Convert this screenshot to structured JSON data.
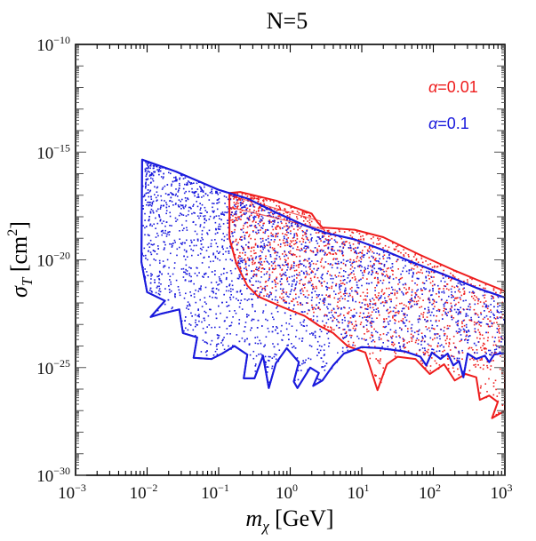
{
  "chart_data": {
    "type": "scatter",
    "title": "N=5",
    "xlabel": "m_χ [GeV]",
    "xlabel_parts": {
      "main": "m",
      "sub": "χ",
      "unit": " [GeV]"
    },
    "ylabel": "σ_T [cm²]",
    "ylabel_parts": {
      "main": "σ",
      "sub": "T",
      "unit": " [cm",
      "sup": "2",
      "close": "]"
    },
    "xscale": "log",
    "yscale": "log",
    "xlim": [
      0.001,
      1000
    ],
    "ylim": [
      1e-30,
      1e-10
    ],
    "grid": false,
    "x_ticks": [
      {
        "exp": -3,
        "label": "10",
        "sup": "−3"
      },
      {
        "exp": -2,
        "label": "10",
        "sup": "−2"
      },
      {
        "exp": -1,
        "label": "10",
        "sup": "−1"
      },
      {
        "exp": 0,
        "label": "10",
        "sup": "0"
      },
      {
        "exp": 1,
        "label": "10",
        "sup": "1"
      },
      {
        "exp": 2,
        "label": "10",
        "sup": "2"
      },
      {
        "exp": 3,
        "label": "10",
        "sup": "3"
      }
    ],
    "y_ticks": [
      {
        "exp": -10,
        "label": "10",
        "sup": "−10"
      },
      {
        "exp": -15,
        "label": "10",
        "sup": "−15"
      },
      {
        "exp": -20,
        "label": "10",
        "sup": "−20"
      },
      {
        "exp": -25,
        "label": "10",
        "sup": "−25"
      },
      {
        "exp": -30,
        "label": "10",
        "sup": "−30"
      }
    ],
    "legend_position": "top-right",
    "series": [
      {
        "name": "α=0.1",
        "label_symbol": "α",
        "label_value": "=0.1",
        "color": "#1a1adc",
        "draw_order": 2,
        "density": 2600,
        "outline_log10": [
          [
            -2.07,
            -15.35
          ],
          [
            -1.6,
            -15.9
          ],
          [
            -1.0,
            -16.75
          ],
          [
            -0.6,
            -17.15
          ],
          [
            -0.2,
            -17.8
          ],
          [
            0.2,
            -18.4
          ],
          [
            0.5,
            -18.75
          ],
          [
            0.9,
            -19.05
          ],
          [
            1.3,
            -19.55
          ],
          [
            1.7,
            -20.1
          ],
          [
            2.2,
            -20.75
          ],
          [
            2.6,
            -21.3
          ],
          [
            3.0,
            -21.75
          ],
          [
            3.0,
            -24.3
          ],
          [
            2.85,
            -24.4
          ],
          [
            2.78,
            -24.75
          ],
          [
            2.72,
            -24.45
          ],
          [
            2.6,
            -24.6
          ],
          [
            2.48,
            -24.35
          ],
          [
            2.42,
            -25.45
          ],
          [
            2.36,
            -24.7
          ],
          [
            2.28,
            -24.9
          ],
          [
            2.2,
            -24.35
          ],
          [
            2.1,
            -24.6
          ],
          [
            1.98,
            -24.3
          ],
          [
            1.9,
            -24.9
          ],
          [
            1.82,
            -24.5
          ],
          [
            1.6,
            -24.25
          ],
          [
            1.25,
            -24.1
          ],
          [
            1.0,
            -24.05
          ],
          [
            0.75,
            -24.35
          ],
          [
            0.6,
            -24.9
          ],
          [
            0.45,
            -25.6
          ],
          [
            0.32,
            -25.85
          ],
          [
            0.4,
            -25.25
          ],
          [
            0.28,
            -25.0
          ],
          [
            0.1,
            -25.95
          ],
          [
            0.05,
            -25.65
          ],
          [
            0.12,
            -24.75
          ],
          [
            -0.05,
            -24.1
          ],
          [
            -0.2,
            -24.8
          ],
          [
            -0.3,
            -25.95
          ],
          [
            -0.38,
            -24.45
          ],
          [
            -0.5,
            -25.5
          ],
          [
            -0.65,
            -25.5
          ],
          [
            -0.6,
            -24.4
          ],
          [
            -0.78,
            -24.0
          ],
          [
            -0.95,
            -24.35
          ],
          [
            -1.1,
            -24.6
          ],
          [
            -1.35,
            -24.55
          ],
          [
            -1.3,
            -23.6
          ],
          [
            -1.5,
            -23.4
          ],
          [
            -1.55,
            -22.3
          ],
          [
            -1.8,
            -22.5
          ],
          [
            -1.95,
            -22.65
          ],
          [
            -1.75,
            -21.9
          ],
          [
            -2.0,
            -21.5
          ],
          [
            -2.08,
            -20.1
          ]
        ]
      },
      {
        "name": "α=0.01",
        "label_symbol": "α",
        "label_value": "=0.01",
        "color": "#ee1c1c",
        "draw_order": 1,
        "density": 1500,
        "outline_log10": [
          [
            -0.85,
            -16.9
          ],
          [
            -0.7,
            -16.85
          ],
          [
            -0.2,
            -17.25
          ],
          [
            0.3,
            -17.85
          ],
          [
            0.38,
            -18.25
          ],
          [
            0.45,
            -18.5
          ],
          [
            0.9,
            -18.6
          ],
          [
            1.3,
            -18.95
          ],
          [
            1.8,
            -19.75
          ],
          [
            2.3,
            -20.5
          ],
          [
            2.7,
            -21.05
          ],
          [
            3.0,
            -21.45
          ],
          [
            3.0,
            -27.0
          ],
          [
            2.82,
            -27.35
          ],
          [
            2.9,
            -26.6
          ],
          [
            2.78,
            -26.3
          ],
          [
            2.65,
            -26.5
          ],
          [
            2.6,
            -25.45
          ],
          [
            2.45,
            -25.3
          ],
          [
            2.3,
            -25.6
          ],
          [
            2.15,
            -24.85
          ],
          [
            1.95,
            -25.3
          ],
          [
            1.75,
            -24.6
          ],
          [
            1.5,
            -24.5
          ],
          [
            1.35,
            -24.85
          ],
          [
            1.22,
            -26.05
          ],
          [
            1.05,
            -24.3
          ],
          [
            0.8,
            -24.0
          ],
          [
            0.6,
            -23.4
          ],
          [
            0.4,
            -23.05
          ],
          [
            0.2,
            -22.6
          ],
          [
            -0.1,
            -22.2
          ],
          [
            -0.45,
            -21.7
          ],
          [
            -0.6,
            -21.2
          ],
          [
            -0.75,
            -20.2
          ],
          [
            -0.85,
            -19.0
          ]
        ],
        "inner_band_log10": [
          [
            -0.85,
            -17.0
          ],
          [
            0.42,
            -18.2
          ],
          [
            0.42,
            -18.55
          ],
          [
            -0.85,
            -17.55
          ]
        ]
      }
    ]
  }
}
